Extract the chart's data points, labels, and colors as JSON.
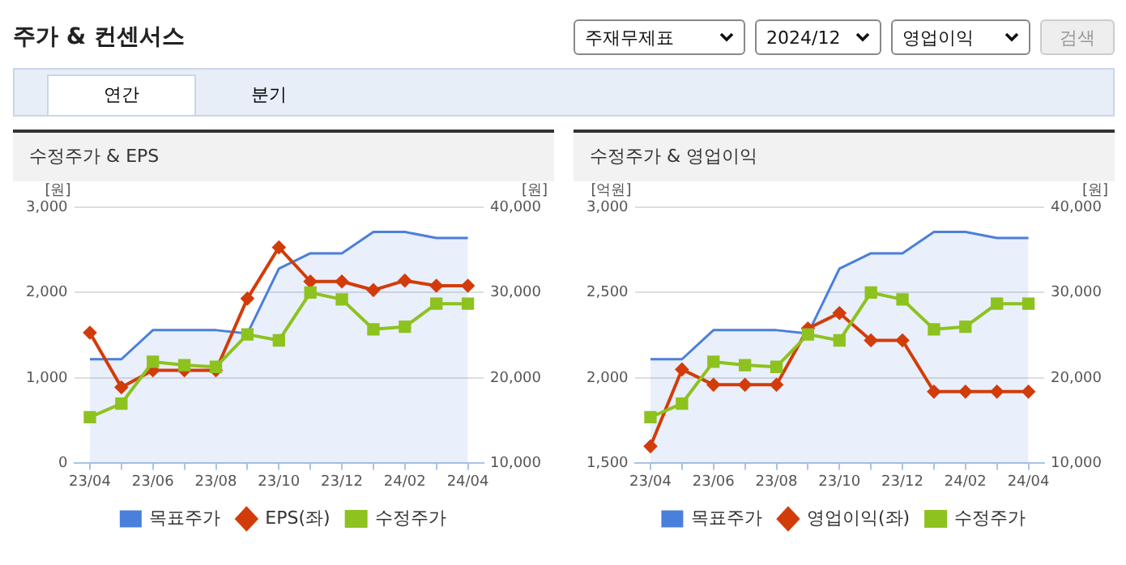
{
  "chart_data": [
    {
      "type": "line",
      "title": "수정주가 & EPS",
      "annotations": [
        "주가 & 컨센서스",
        "주재무제표",
        "2024/12",
        "영업이익",
        "검색",
        "연간",
        "분기"
      ],
      "categories": [
        "23/04",
        null,
        "23/06",
        null,
        "23/08",
        null,
        "23/10",
        null,
        "23/12",
        null,
        "24/02",
        null,
        "24/04"
      ],
      "ylabel": "[원]",
      "y2label": "[원]",
      "ylim": [
        0,
        3000
      ],
      "yticks": [
        {
          "value": 0,
          "label": "0"
        },
        {
          "value": 1000,
          "label": "1,000"
        },
        {
          "value": 2000,
          "label": "2,000"
        },
        {
          "value": 3000,
          "label": "3,000"
        }
      ],
      "y2lim": [
        10000,
        40000
      ],
      "y2ticks": [
        {
          "value": 10000,
          "label": "10,000"
        },
        {
          "value": 20000,
          "label": "20,000"
        },
        {
          "value": 30000,
          "label": "30,000"
        },
        {
          "value": 40000,
          "label": "40,000"
        }
      ],
      "grid": "y",
      "legend": "bottom",
      "series": [
        {
          "name": "목표주가",
          "type": "area",
          "axis": "y2",
          "color": "#4a7fdc",
          "marker": "none",
          "values": [
            22200,
            22200,
            25600,
            25600,
            25600,
            25200,
            32800,
            34600,
            34600,
            37100,
            37100,
            36400,
            36400
          ]
        },
        {
          "name": "EPS(좌)",
          "type": "line",
          "axis": "y",
          "color": "#d23c0a",
          "marker": "diamond",
          "values": [
            1530,
            890,
            1090,
            1090,
            1090,
            1930,
            2530,
            2130,
            2130,
            2030,
            2140,
            2080,
            2080
          ]
        },
        {
          "name": "수정주가",
          "type": "line",
          "axis": "y2",
          "color": "#8dc21f",
          "marker": "square",
          "values": [
            15400,
            17000,
            21900,
            21500,
            21300,
            25100,
            24400,
            30000,
            29200,
            25700,
            26000,
            28700,
            28700
          ]
        }
      ]
    },
    {
      "type": "line",
      "title": "수정주가 & 영업이익",
      "categories": [
        "23/04",
        null,
        "23/06",
        null,
        "23/08",
        null,
        "23/10",
        null,
        "23/12",
        null,
        "24/02",
        null,
        "24/04"
      ],
      "ylabel": "[억원]",
      "y2label": "[원]",
      "ylim": [
        1500,
        3000
      ],
      "yticks": [
        {
          "value": 1500,
          "label": "1,500"
        },
        {
          "value": 2000,
          "label": "2,000"
        },
        {
          "value": 2500,
          "label": "2,500"
        },
        {
          "value": 3000,
          "label": "3,000"
        }
      ],
      "y2lim": [
        10000,
        40000
      ],
      "y2ticks": [
        {
          "value": 10000,
          "label": "10,000"
        },
        {
          "value": 20000,
          "label": "20,000"
        },
        {
          "value": 30000,
          "label": "30,000"
        },
        {
          "value": 40000,
          "label": "40,000"
        }
      ],
      "grid": "y",
      "legend": "bottom",
      "series": [
        {
          "name": "목표주가",
          "type": "area",
          "axis": "y2",
          "color": "#4a7fdc",
          "marker": "none",
          "values": [
            22200,
            22200,
            25600,
            25600,
            25600,
            25200,
            32800,
            34600,
            34600,
            37100,
            37100,
            36400,
            36400
          ]
        },
        {
          "name": "영업이익(좌)",
          "type": "line",
          "axis": "y",
          "color": "#d23c0a",
          "marker": "diamond",
          "values": [
            1600,
            2050,
            1960,
            1960,
            1960,
            2290,
            2380,
            2220,
            2220,
            1920,
            1920,
            1920,
            1920
          ]
        },
        {
          "name": "수정주가",
          "type": "line",
          "axis": "y2",
          "color": "#8dc21f",
          "marker": "square",
          "values": [
            15400,
            17000,
            21900,
            21500,
            21300,
            25100,
            24400,
            30000,
            29200,
            25700,
            26000,
            28700,
            28700
          ]
        }
      ]
    }
  ]
}
